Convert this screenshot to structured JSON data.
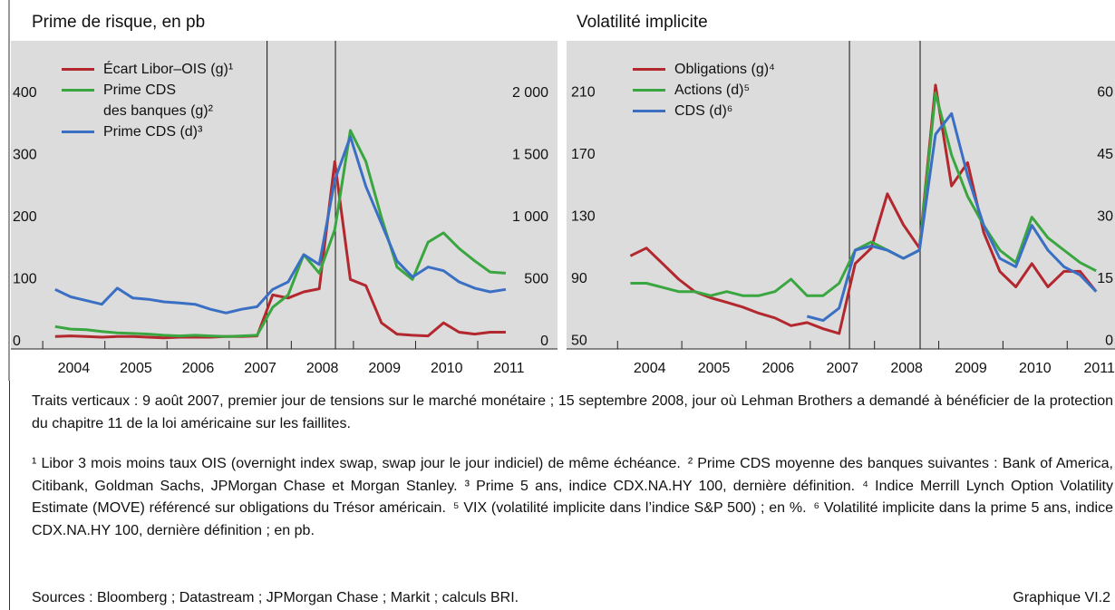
{
  "chart_data": [
    {
      "type": "line",
      "title": "Prime de risque, en pb",
      "x": [
        2004.2,
        2004.45,
        2004.7,
        2004.95,
        2005.2,
        2005.45,
        2005.7,
        2005.95,
        2006.2,
        2006.45,
        2006.7,
        2006.95,
        2007.2,
        2007.45,
        2007.7,
        2007.95,
        2008.2,
        2008.45,
        2008.7,
        2008.95,
        2009.2,
        2009.45,
        2009.7,
        2009.95,
        2010.2,
        2010.45,
        2010.7,
        2010.95,
        2011.2,
        2011.45
      ],
      "series": [
        {
          "name": "Écart Libor–OIS (g)¹",
          "color": "#b3272e",
          "values": [
            8,
            9,
            8,
            7,
            8,
            8,
            7,
            6,
            7,
            7,
            7,
            8,
            8,
            9,
            75,
            70,
            80,
            85,
            290,
            100,
            90,
            30,
            12,
            10,
            9,
            30,
            15,
            12,
            15,
            15
          ]
        },
        {
          "name": "Prime CDS\ndes banques (g)²",
          "color": "#3aa640",
          "values": [
            24,
            20,
            19,
            16,
            14,
            13,
            12,
            10,
            9,
            10,
            9,
            8,
            9,
            10,
            55,
            75,
            140,
            110,
            180,
            340,
            290,
            200,
            120,
            100,
            160,
            175,
            150,
            130,
            112,
            110
          ]
        },
        {
          "name": "Prime CDS (d)³",
          "color": "#3a6fc4",
          "axis": "y2",
          "values": [
            420,
            360,
            330,
            300,
            430,
            350,
            340,
            320,
            310,
            300,
            260,
            230,
            260,
            280,
            420,
            480,
            700,
            620,
            1300,
            1650,
            1250,
            950,
            650,
            520,
            600,
            570,
            480,
            430,
            400,
            420
          ]
        }
      ],
      "xlim": [
        2003.75,
        2011.7
      ],
      "xticks": [
        2004,
        2005,
        2006,
        2007,
        2008,
        2009,
        2010,
        2011
      ],
      "ylim": [
        -12,
        483
      ],
      "yticks": [
        0,
        100,
        200,
        300,
        400
      ],
      "y2lim": [
        -60,
        2415
      ],
      "y2ticks": [
        0,
        500,
        {
          "value": 1000,
          "label": "1 000"
        },
        {
          "value": 1500,
          "label": "1 500"
        },
        {
          "value": 2000,
          "label": "2 000"
        }
      ],
      "vlines": [
        2007.61,
        2008.71
      ]
    },
    {
      "type": "line",
      "title": "Volatilité implicite",
      "x": [
        2004.2,
        2004.45,
        2004.7,
        2004.95,
        2005.2,
        2005.45,
        2005.7,
        2005.95,
        2006.2,
        2006.45,
        2006.7,
        2006.95,
        2007.2,
        2007.45,
        2007.7,
        2007.95,
        2008.2,
        2008.45,
        2008.7,
        2008.95,
        2009.2,
        2009.45,
        2009.7,
        2009.95,
        2010.2,
        2010.45,
        2010.7,
        2010.95,
        2011.2,
        2011.45
      ],
      "series": [
        {
          "name": "Obligations (g)⁴",
          "color": "#b3272e",
          "values": [
            105,
            110,
            100,
            90,
            82,
            78,
            75,
            72,
            68,
            65,
            60,
            62,
            58,
            55,
            100,
            110,
            145,
            125,
            110,
            215,
            150,
            165,
            120,
            95,
            85,
            100,
            85,
            95,
            95,
            82
          ]
        },
        {
          "name": "Actions (d)⁵",
          "color": "#3aa640",
          "axis": "y2",
          "values": [
            14,
            14,
            13,
            12,
            12,
            11,
            12,
            11,
            11,
            12,
            15,
            11,
            11,
            14,
            22,
            24,
            22,
            20,
            22,
            60,
            45,
            35,
            28,
            22,
            19,
            30,
            25,
            22,
            19,
            17
          ]
        },
        {
          "name": "CDS (d)⁶",
          "color": "#3a6fc4",
          "axis": "y2",
          "values": [
            null,
            null,
            null,
            null,
            null,
            null,
            null,
            null,
            null,
            null,
            null,
            6,
            5,
            8,
            22,
            23,
            22,
            20,
            22,
            50,
            55,
            40,
            28,
            20,
            18,
            28,
            22,
            18,
            16,
            12
          ]
        }
      ],
      "xlim": [
        2003.7,
        2011.49
      ],
      "xticks": [
        2004,
        2005,
        2006,
        2007,
        2008,
        2009,
        2010,
        2011
      ],
      "ylim": [
        45,
        243
      ],
      "yticks": [
        50,
        90,
        130,
        170,
        210
      ],
      "y2lim": [
        -1.875,
        72.375
      ],
      "y2ticks": [
        0,
        15,
        30,
        45,
        60
      ],
      "vlines": [
        2007.61,
        2008.71
      ]
    }
  ],
  "caption": "Traits verticaux : 9 août 2007, premier jour de tensions sur le marché monétaire ; 15 septembre 2008, jour où Lehman Brothers a demandé à bénéficier de la protection du chapitre 11 de la loi américaine sur les faillites.",
  "notes": [
    "¹ Libor 3 mois moins taux OIS (overnight index swap, swap jour le jour indiciel) de même échéance.",
    "² Prime CDS moyenne des banques suivantes : Bank of America, Citibank, Goldman Sachs, JPMorgan Chase et Morgan Stanley.",
    "³ Prime 5 ans, indice CDX.NA.HY 100, dernière définition.",
    "⁴ Indice Merrill Lynch Option Volatility Estimate (MOVE) référencé sur obligations du Trésor américain.",
    "⁵ VIX (volatilité implicite dans l’indice S&P 500) ; en %.",
    "⁶ Volatilité implicite dans la prime 5 ans, indice CDX.NA.HY 100, dernière définition ; en pb."
  ],
  "sources": "Sources : Bloomberg ; Datastream ; JPMorgan Chase ; Markit ; calculs BRI.",
  "figure_label": "Graphique VI.2"
}
